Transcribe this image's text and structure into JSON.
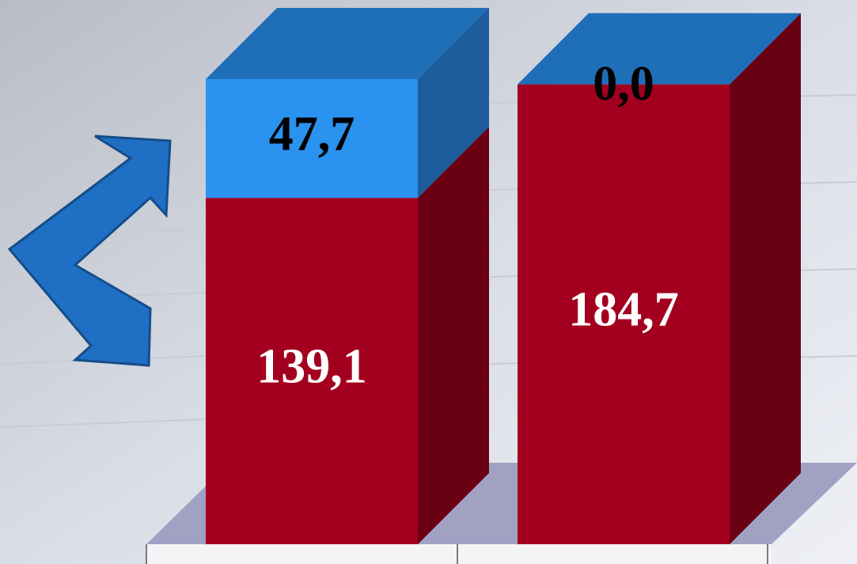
{
  "chart_data": {
    "type": "bar3d_stacked",
    "categories": [
      null,
      null
    ],
    "series": [
      {
        "color": "#a30020",
        "side": "#6a0014",
        "label_color": "#ffffff",
        "values": [
          139.1,
          184.7
        ],
        "value_labels": [
          "139,1",
          "184,7"
        ]
      },
      {
        "color": "#2a92ef",
        "side": "#1c5c9c",
        "label_color": "#000000",
        "values": [
          47.7,
          0.0
        ],
        "value_labels": [
          "47,7",
          "0,0"
        ]
      }
    ],
    "top_color": "#1f6fb8"
  }
}
